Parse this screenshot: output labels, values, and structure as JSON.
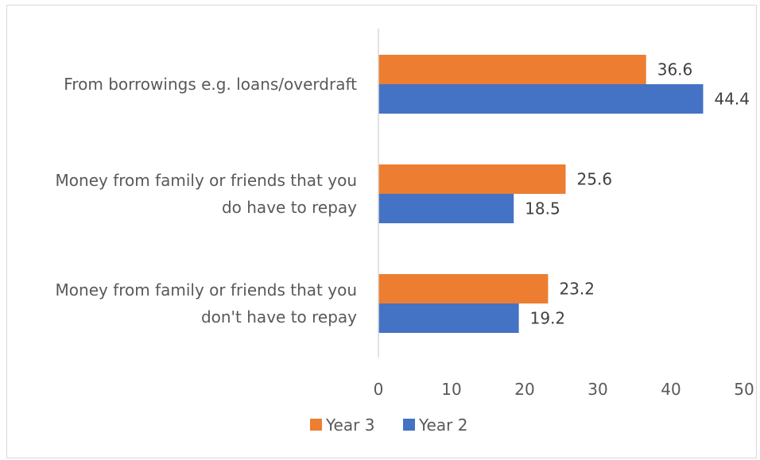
{
  "chart_data": {
    "type": "bar",
    "orientation": "horizontal",
    "title": "",
    "xlabel": "",
    "ylabel": "",
    "categories": [
      [
        "From borrowings e.g. loans/overdraft"
      ],
      [
        "Money from family or friends that you",
        "do have to repay"
      ],
      [
        "Money from family or friends that you",
        "don't have to repay"
      ]
    ],
    "series": [
      {
        "name": "Year 3",
        "color": "#ed7d31",
        "values": [
          36.6,
          25.6,
          23.2
        ]
      },
      {
        "name": "Year 2",
        "color": "#4472c4",
        "values": [
          44.4,
          18.5,
          19.2
        ]
      }
    ],
    "xlim": [
      0,
      50
    ],
    "xticks": [
      0,
      10,
      20,
      30,
      40,
      50
    ],
    "grid": false,
    "legend": "bottom-center",
    "data_labels": true
  }
}
